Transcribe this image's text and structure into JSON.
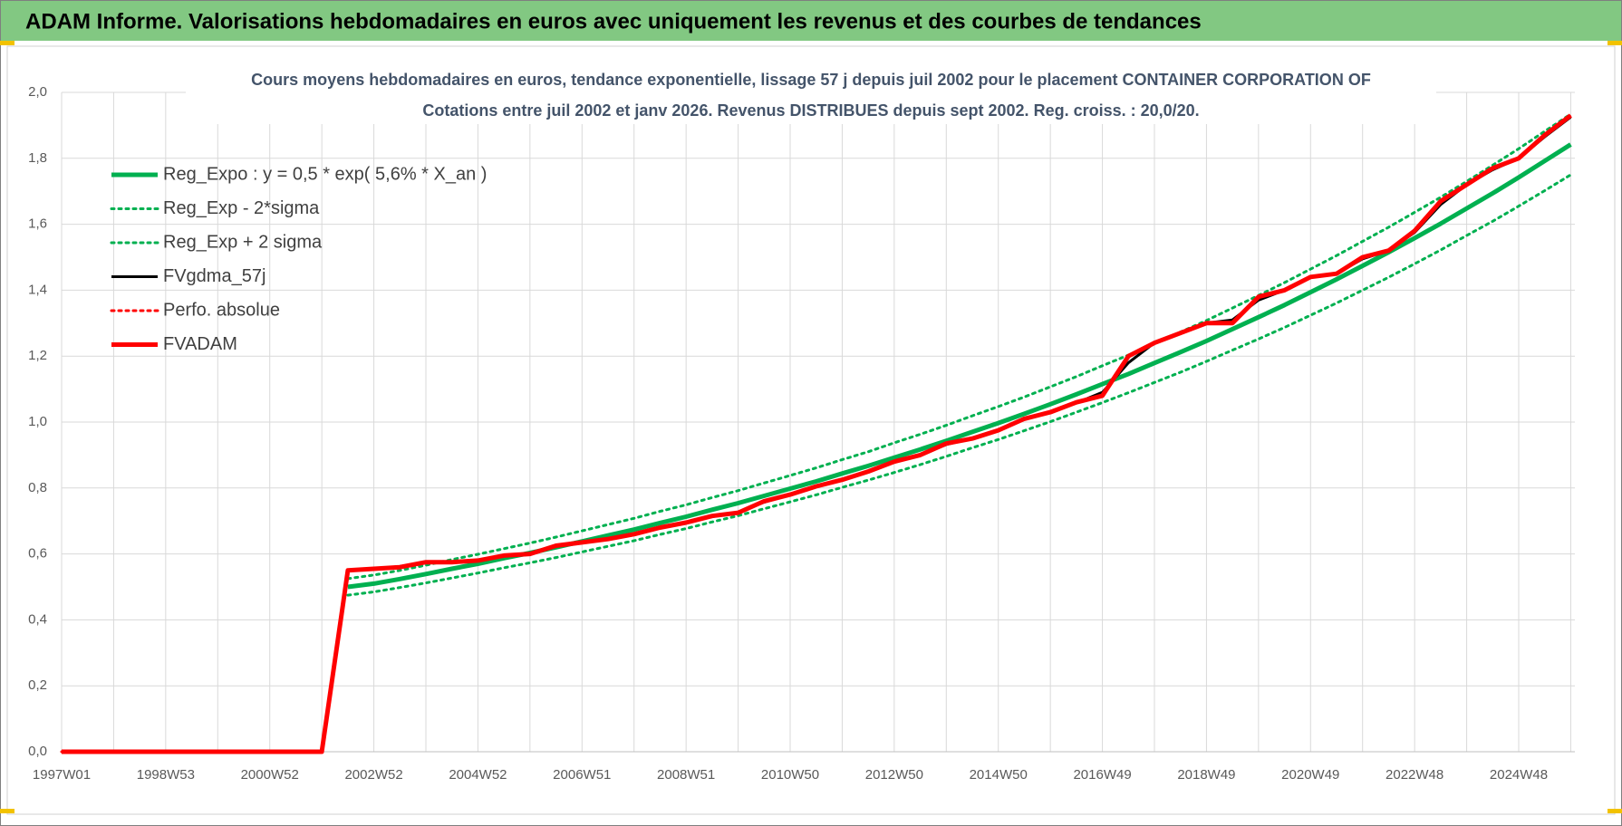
{
  "header": {
    "title": "ADAM Informe. Valorisations hebdomadaires en euros avec uniquement les revenus et des courbes de tendances"
  },
  "chart_data": {
    "type": "line",
    "title": "Cours moyens hebdomadaires en euros, tendance exponentielle, lissage 57 j depuis juil 2002 pour le placement CONTAINER CORPORATION OF",
    "subtitle": "Cotations entre juil 2002 et janv 2026. Revenus DISTRIBUES depuis sept 2002. Reg. croiss. : 20,0/20.",
    "categories": [
      "1997W01",
      null,
      null,
      null,
      "1998W53",
      null,
      null,
      null,
      "2000W52",
      null,
      null,
      null,
      "2002W52",
      null,
      null,
      null,
      "2004W52",
      null,
      null,
      null,
      "2006W51",
      null,
      null,
      null,
      "2008W51",
      null,
      null,
      null,
      "2010W50",
      null,
      null,
      null,
      "2012W50",
      null,
      null,
      null,
      "2014W50",
      null,
      null,
      null,
      "2016W49",
      null,
      null,
      null,
      "2018W49",
      null,
      null,
      null,
      "2020W49",
      null,
      null,
      null,
      "2022W48",
      null,
      null,
      null,
      "2024W48",
      null,
      null
    ],
    "ylim": [
      0,
      2
    ],
    "yticks": [
      {
        "value": 0,
        "label": "0,0"
      },
      {
        "value": 0.2,
        "label": "0,2"
      },
      {
        "value": 0.4,
        "label": "0,4"
      },
      {
        "value": 0.6,
        "label": "0,6"
      },
      {
        "value": 0.8,
        "label": "0,8"
      },
      {
        "value": 1,
        "label": "1,0"
      },
      {
        "value": 1.2,
        "label": "1,2"
      },
      {
        "value": 1.4,
        "label": "1,4"
      },
      {
        "value": 1.6,
        "label": "1,6"
      },
      {
        "value": 1.8,
        "label": "1,8"
      },
      {
        "value": 2,
        "label": "2,0"
      }
    ],
    "grid": true,
    "legend": "upper-left",
    "series": [
      {
        "name": "Reg_Expo : y = 0,5 * exp( 5,6% *  X_an )",
        "color": "#00b050",
        "style": "solid",
        "weight": "thick",
        "values": [
          null,
          null,
          null,
          null,
          null,
          null,
          null,
          null,
          null,
          null,
          null,
          0.5,
          0.51,
          0.524,
          0.539,
          0.555,
          0.57,
          0.587,
          0.603,
          0.62,
          0.638,
          0.656,
          0.674,
          0.694,
          0.713,
          0.734,
          0.754,
          0.776,
          0.798,
          0.82,
          0.844,
          0.867,
          0.892,
          0.917,
          0.943,
          0.97,
          0.997,
          1.025,
          1.054,
          1.084,
          1.115,
          1.146,
          1.179,
          1.212,
          1.246,
          1.282,
          1.318,
          1.355,
          1.394,
          1.433,
          1.474,
          1.515,
          1.558,
          1.602,
          1.648,
          1.694,
          1.742,
          1.792,
          1.842
        ]
      },
      {
        "name": "Reg_Exp - 2*sigma",
        "color": "#00b050",
        "style": "dotted",
        "weight": "medium",
        "values": [
          null,
          null,
          null,
          null,
          null,
          null,
          null,
          null,
          null,
          null,
          null,
          0.475,
          0.485,
          0.498,
          0.512,
          0.527,
          0.542,
          0.558,
          0.573,
          0.589,
          0.606,
          0.623,
          0.64,
          0.659,
          0.677,
          0.697,
          0.716,
          0.737,
          0.758,
          0.779,
          0.802,
          0.824,
          0.847,
          0.871,
          0.896,
          0.922,
          0.947,
          0.974,
          1.001,
          1.03,
          1.059,
          1.089,
          1.12,
          1.151,
          1.184,
          1.218,
          1.252,
          1.287,
          1.324,
          1.361,
          1.4,
          1.439,
          1.48,
          1.522,
          1.566,
          1.609,
          1.655,
          1.702,
          1.75
        ]
      },
      {
        "name": "Reg_Exp + 2 sigma",
        "color": "#00b050",
        "style": "dotted",
        "weight": "medium",
        "values": [
          null,
          null,
          null,
          null,
          null,
          null,
          null,
          null,
          null,
          null,
          null,
          0.525,
          0.536,
          0.55,
          0.566,
          0.583,
          0.599,
          0.616,
          0.633,
          0.651,
          0.67,
          0.689,
          0.708,
          0.729,
          0.749,
          0.771,
          0.792,
          0.815,
          0.838,
          0.861,
          0.886,
          0.91,
          0.937,
          0.963,
          0.99,
          1.019,
          1.047,
          1.076,
          1.107,
          1.138,
          1.171,
          1.203,
          1.238,
          1.273,
          1.308,
          1.346,
          1.384,
          1.423,
          1.464,
          1.505,
          1.548,
          1.591,
          1.636,
          1.682,
          1.73,
          1.779,
          1.829,
          1.882,
          1.934
        ]
      },
      {
        "name": "FVgdma_57j",
        "color": "#000000",
        "style": "solid",
        "weight": "medium",
        "values": [
          0,
          0,
          0,
          0,
          0,
          0,
          0,
          0,
          0,
          0,
          0,
          0.55,
          0.555,
          0.562,
          0.574,
          0.577,
          0.582,
          0.594,
          0.602,
          0.623,
          0.635,
          0.646,
          0.66,
          0.678,
          0.695,
          0.713,
          0.727,
          0.757,
          0.78,
          0.803,
          0.826,
          0.848,
          0.878,
          0.9,
          0.932,
          0.95,
          0.975,
          1.008,
          1.03,
          1.058,
          1.09,
          1.18,
          1.24,
          1.268,
          1.3,
          1.31,
          1.37,
          1.4,
          1.44,
          1.45,
          1.495,
          1.52,
          1.575,
          1.66,
          1.72,
          1.765,
          1.8,
          1.865,
          1.925
        ]
      },
      {
        "name": "Perfo. absolue",
        "color": "#ff0000",
        "style": "dotted",
        "weight": "medium",
        "values": [
          0,
          0,
          0,
          0,
          0,
          0,
          0,
          0,
          0,
          0,
          0,
          0.55,
          0.555,
          0.56,
          0.575,
          0.575,
          0.58,
          0.595,
          0.6,
          0.625,
          0.635,
          0.645,
          0.66,
          0.68,
          0.695,
          0.715,
          0.725,
          0.76,
          0.78,
          0.805,
          0.825,
          0.85,
          0.88,
          0.9,
          0.935,
          0.95,
          0.975,
          1.01,
          1.03,
          1.06,
          1.08,
          1.2,
          1.24,
          1.27,
          1.3,
          1.3,
          1.38,
          1.4,
          1.44,
          1.45,
          1.5,
          1.52,
          1.58,
          1.67,
          1.72,
          1.77,
          1.8,
          1.87,
          1.93
        ]
      },
      {
        "name": "FVADAM",
        "color": "#ff0000",
        "style": "solid",
        "weight": "thick",
        "values": [
          0,
          0,
          0,
          0,
          0,
          0,
          0,
          0,
          0,
          0,
          0,
          0.55,
          0.555,
          0.56,
          0.575,
          0.575,
          0.58,
          0.595,
          0.6,
          0.625,
          0.635,
          0.645,
          0.66,
          0.68,
          0.695,
          0.715,
          0.725,
          0.76,
          0.78,
          0.805,
          0.825,
          0.85,
          0.88,
          0.9,
          0.935,
          0.95,
          0.975,
          1.01,
          1.03,
          1.06,
          1.08,
          1.2,
          1.24,
          1.27,
          1.3,
          1.3,
          1.38,
          1.4,
          1.44,
          1.45,
          1.5,
          1.52,
          1.58,
          1.67,
          1.72,
          1.77,
          1.8,
          1.87,
          1.93
        ]
      }
    ]
  }
}
